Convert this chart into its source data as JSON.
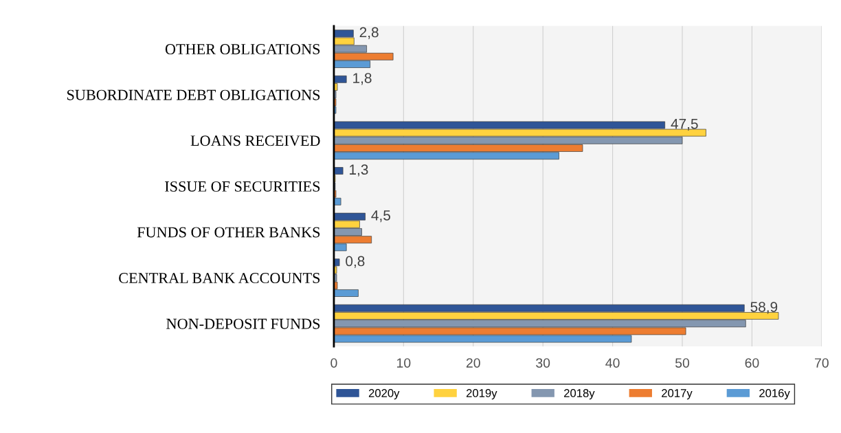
{
  "chart_data": {
    "type": "bar",
    "orientation": "horizontal",
    "categories": [
      "OTHER OBLIGATIONS",
      "SUBORDINATE DEBT OBLIGATIONS",
      "LOANS RECEIVED",
      "ISSUE OF SECURITIES",
      "FUNDS OF OTHER BANKS",
      "CENTRAL BANK ACCOUNTS",
      "NON-DEPOSIT FUNDS"
    ],
    "series": [
      {
        "name": "2020y",
        "color": "#2f5597",
        "values": [
          2.8,
          1.8,
          47.5,
          1.3,
          4.5,
          0.8,
          58.9
        ],
        "value_labels": [
          "2,8",
          "1,8",
          "47,5",
          "1,3",
          "4,5",
          "0,8",
          "58,9"
        ]
      },
      {
        "name": "2019y",
        "color": "#ffd23f",
        "values": [
          2.9,
          0.5,
          53.4,
          0.2,
          3.7,
          0.4,
          63.8
        ]
      },
      {
        "name": "2018y",
        "color": "#8497b0",
        "values": [
          4.7,
          0.3,
          50.0,
          0.2,
          4.0,
          0.4,
          59.1
        ]
      },
      {
        "name": "2017y",
        "color": "#ed7d31",
        "values": [
          8.5,
          0.3,
          35.7,
          0.3,
          5.4,
          0.5,
          50.5
        ]
      },
      {
        "name": "2016y",
        "color": "#5b9bd5",
        "values": [
          5.2,
          0.3,
          32.3,
          1.0,
          1.8,
          3.5,
          42.7
        ]
      }
    ],
    "xlim": [
      0,
      70
    ],
    "xticks": [
      0,
      10,
      20,
      30,
      40,
      50,
      60,
      70
    ],
    "grid": "x",
    "legend": "bottom"
  }
}
